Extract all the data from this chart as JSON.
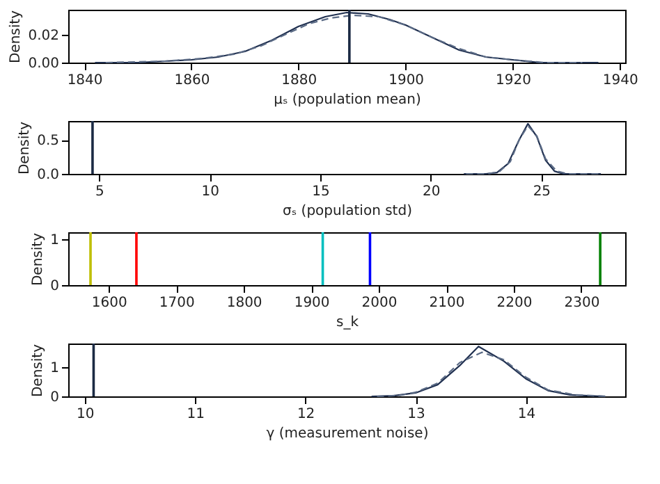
{
  "chart_data": [
    {
      "type": "line",
      "xlabel": "μₛ (population mean)",
      "ylabel": "Density",
      "xlim": [
        1837,
        1941
      ],
      "ylim": [
        0,
        0.038
      ],
      "xticks": [
        1840,
        1860,
        1880,
        1900,
        1920,
        1940
      ],
      "yticks": [
        {
          "value": 0,
          "label": "0.00"
        },
        0.02
      ],
      "series": [
        {
          "color": "#1f2f4f",
          "line_style": "solid",
          "x": [
            1842,
            1850,
            1860,
            1865,
            1870,
            1875,
            1880,
            1885,
            1889,
            1893,
            1897,
            1900,
            1905,
            1910,
            1915,
            1920,
            1925,
            1930,
            1936
          ],
          "values": [
            0,
            0,
            0.002,
            0.004,
            0.008,
            0.016,
            0.026,
            0.033,
            0.036,
            0.035,
            0.031,
            0.027,
            0.018,
            0.009,
            0.004,
            0.002,
            0,
            0,
            0
          ]
        },
        {
          "color": "#5a6a85",
          "line_style": "dashed",
          "x": [
            1844,
            1855,
            1862,
            1868,
            1873,
            1878,
            1882,
            1886,
            1890,
            1895,
            1900,
            1905,
            1910,
            1915,
            1920,
            1926,
            1933
          ],
          "values": [
            0,
            0.001,
            0.003,
            0.006,
            0.012,
            0.021,
            0.028,
            0.032,
            0.034,
            0.033,
            0.027,
            0.018,
            0.01,
            0.004,
            0.002,
            0,
            0
          ]
        }
      ],
      "ref_lines": [
        {
          "axis": "x",
          "value": 1889.5,
          "color": "#1b2a44"
        }
      ]
    },
    {
      "type": "line",
      "xlabel": "σₛ (population std)",
      "ylabel": "Density",
      "xlim": [
        3.6,
        28.8
      ],
      "ylim": [
        0,
        0.78
      ],
      "xticks": [
        5,
        10,
        15,
        20,
        25
      ],
      "yticks": [
        {
          "value": 0,
          "label": "0.0"
        },
        0.5
      ],
      "series": [
        {
          "color": "#1f2f4f",
          "line_style": "solid",
          "x": [
            21.5,
            22.5,
            23,
            23.5,
            24,
            24.4,
            24.8,
            25.2,
            25.6,
            26,
            27.7
          ],
          "values": [
            0,
            0,
            0.02,
            0.15,
            0.5,
            0.74,
            0.55,
            0.2,
            0.04,
            0,
            0
          ]
        },
        {
          "color": "#5a6a85",
          "line_style": "dashed",
          "x": [
            21.6,
            22.6,
            23.1,
            23.6,
            24,
            24.4,
            24.8,
            25.2,
            25.7,
            26.2,
            27.6
          ],
          "values": [
            0,
            0,
            0.03,
            0.18,
            0.5,
            0.71,
            0.56,
            0.22,
            0.04,
            0,
            0
          ]
        }
      ],
      "ref_lines": [
        {
          "axis": "x",
          "value": 4.7,
          "color": "#1b2a44"
        }
      ]
    },
    {
      "type": "line",
      "xlabel": "s_k",
      "ylabel": "Density",
      "xlim": [
        1540,
        2365
      ],
      "ylim": [
        0,
        1.15
      ],
      "xticks": [
        1600,
        1700,
        1800,
        1900,
        2000,
        2100,
        2200,
        2300
      ],
      "yticks": [
        0,
        1
      ],
      "ref_lines": [
        {
          "axis": "x",
          "value": 1573,
          "color": "#bfbf00"
        },
        {
          "axis": "x",
          "value": 1641,
          "color": "#ff0000"
        },
        {
          "axis": "x",
          "value": 1917,
          "color": "#00bfbf"
        },
        {
          "axis": "x",
          "value": 1987,
          "color": "#0000ff"
        },
        {
          "axis": "x",
          "value": 2328,
          "color": "#008000"
        }
      ]
    },
    {
      "type": "line",
      "xlabel": "γ (measurement noise)",
      "ylabel": "Density",
      "xlim": [
        9.85,
        14.9
      ],
      "ylim": [
        0,
        1.8
      ],
      "xticks": [
        10,
        11,
        12,
        13,
        14
      ],
      "yticks": [
        0,
        1
      ],
      "series": [
        {
          "color": "#1f2f4f",
          "line_style": "solid",
          "x": [
            12.6,
            12.8,
            13,
            13.2,
            13.4,
            13.57,
            13.8,
            14,
            14.2,
            14.4,
            14.7
          ],
          "values": [
            0,
            0.02,
            0.12,
            0.4,
            1.05,
            1.7,
            1.2,
            0.6,
            0.2,
            0.05,
            0
          ]
        },
        {
          "color": "#5a6a85",
          "line_style": "dashed",
          "x": [
            12.65,
            12.85,
            13,
            13.2,
            13.4,
            13.6,
            13.8,
            14,
            14.2,
            14.45,
            14.75
          ],
          "values": [
            0,
            0.03,
            0.14,
            0.45,
            1.15,
            1.5,
            1.25,
            0.65,
            0.22,
            0.05,
            0
          ]
        }
      ],
      "ref_lines": [
        {
          "axis": "x",
          "value": 10.08,
          "color": "#1b2a44"
        }
      ]
    }
  ]
}
